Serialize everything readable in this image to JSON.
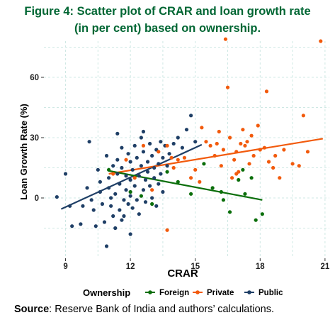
{
  "title": {
    "line1": "Figure 4: Scatter plot of CRAR and loan growth rate",
    "line2": "(in per cent) based on ownership."
  },
  "source": {
    "label": "Source",
    "text": ": Reserve Bank of India and authors’ calculations."
  },
  "chart_data": {
    "type": "scatter",
    "xlabel": "CRAR",
    "ylabel": "Loan Growth Rate (%)",
    "xlim": [
      8,
      21.2
    ],
    "ylim": [
      -30,
      78
    ],
    "xticks": [
      9,
      12,
      15,
      18,
      21
    ],
    "yticks": [
      0,
      30,
      60
    ],
    "grid": true,
    "legend": {
      "title": "Ownership",
      "position": "bottom",
      "entries": [
        "Foreign",
        "Private",
        "Public"
      ]
    },
    "colors": {
      "Foreign": "#0a6e0a",
      "Private": "#f25a0c",
      "Public": "#1f3f66"
    },
    "series": [
      {
        "name": "Public",
        "points": [
          [
            8.6,
            0.5
          ],
          [
            9.0,
            12
          ],
          [
            9.2,
            -4
          ],
          [
            9.3,
            -14
          ],
          [
            9.7,
            -13
          ],
          [
            9.8,
            -4
          ],
          [
            10.0,
            5
          ],
          [
            10.1,
            28
          ],
          [
            10.2,
            -1
          ],
          [
            10.3,
            -6
          ],
          [
            10.4,
            -14
          ],
          [
            10.5,
            14
          ],
          [
            10.6,
            8
          ],
          [
            10.6,
            3
          ],
          [
            10.7,
            -3
          ],
          [
            10.8,
            -12
          ],
          [
            10.9,
            21
          ],
          [
            11.0,
            10
          ],
          [
            11.0,
            5
          ],
          [
            11.1,
            0
          ],
          [
            11.1,
            -4
          ],
          [
            11.2,
            -9
          ],
          [
            11.2,
            16
          ],
          [
            11.3,
            -15
          ],
          [
            11.3,
            2
          ],
          [
            11.4,
            12
          ],
          [
            11.4,
            19
          ],
          [
            11.5,
            7
          ],
          [
            11.5,
            -6
          ],
          [
            11.6,
            25
          ],
          [
            11.6,
            15
          ],
          [
            11.7,
            -1
          ],
          [
            11.7,
            -9
          ],
          [
            11.8,
            11
          ],
          [
            11.8,
            4
          ],
          [
            11.9,
            22
          ],
          [
            11.9,
            -3
          ],
          [
            12.0,
            18
          ],
          [
            12.0,
            9
          ],
          [
            12.0,
            1
          ],
          [
            12.1,
            -5
          ],
          [
            12.1,
            14
          ],
          [
            12.2,
            26
          ],
          [
            12.2,
            6
          ],
          [
            12.3,
            -1
          ],
          [
            12.3,
            20
          ],
          [
            12.4,
            11
          ],
          [
            12.4,
            -8
          ],
          [
            12.5,
            30
          ],
          [
            12.5,
            16
          ],
          [
            12.6,
            4
          ],
          [
            12.6,
            23
          ],
          [
            12.7,
            9
          ],
          [
            12.7,
            -2
          ],
          [
            12.8,
            18
          ],
          [
            12.8,
            13
          ],
          [
            12.9,
            27
          ],
          [
            12.9,
            6
          ],
          [
            13.0,
            21
          ],
          [
            13.0,
            0
          ],
          [
            13.1,
            15
          ],
          [
            13.1,
            10
          ],
          [
            13.2,
            24
          ],
          [
            13.2,
            -4
          ],
          [
            13.3,
            17
          ],
          [
            13.3,
            7
          ],
          [
            13.4,
            28
          ],
          [
            13.4,
            12
          ],
          [
            13.5,
            20
          ],
          [
            13.5,
            3
          ],
          [
            13.6,
            26
          ],
          [
            13.7,
            16
          ],
          [
            13.8,
            22
          ],
          [
            14.0,
            27
          ],
          [
            14.2,
            30
          ],
          [
            14.4,
            25
          ],
          [
            14.6,
            34
          ],
          [
            14.8,
            41
          ],
          [
            15.0,
            28
          ],
          [
            10.9,
            -24
          ],
          [
            11.6,
            -11
          ],
          [
            12.0,
            -18
          ],
          [
            11.4,
            32
          ],
          [
            12.6,
            33
          ]
        ]
      },
      {
        "name": "Private",
        "points": [
          [
            11.2,
            12
          ],
          [
            11.8,
            19
          ],
          [
            12.2,
            10
          ],
          [
            12.6,
            26
          ],
          [
            13.0,
            4
          ],
          [
            13.3,
            23
          ],
          [
            13.7,
            -16
          ],
          [
            13.7,
            26
          ],
          [
            13.9,
            20
          ],
          [
            14.0,
            15
          ],
          [
            14.2,
            19
          ],
          [
            14.5,
            20
          ],
          [
            14.8,
            10
          ],
          [
            15.0,
            14
          ],
          [
            15.2,
            8
          ],
          [
            15.3,
            35
          ],
          [
            15.5,
            28
          ],
          [
            15.7,
            26
          ],
          [
            15.9,
            21
          ],
          [
            16.0,
            27
          ],
          [
            16.1,
            33
          ],
          [
            16.2,
            16
          ],
          [
            16.3,
            24
          ],
          [
            16.4,
            79
          ],
          [
            16.5,
            55
          ],
          [
            16.6,
            30
          ],
          [
            16.7,
            10
          ],
          [
            16.8,
            19
          ],
          [
            16.9,
            23
          ],
          [
            17.0,
            13
          ],
          [
            17.2,
            34
          ],
          [
            17.3,
            26
          ],
          [
            17.4,
            28
          ],
          [
            17.5,
            17
          ],
          [
            17.6,
            31
          ],
          [
            17.7,
            21
          ],
          [
            17.9,
            36
          ],
          [
            18.0,
            24
          ],
          [
            18.2,
            25
          ],
          [
            18.3,
            53
          ],
          [
            18.4,
            18
          ],
          [
            18.6,
            15
          ],
          [
            18.7,
            21
          ],
          [
            18.9,
            10
          ],
          [
            19.1,
            24
          ],
          [
            19.5,
            17
          ],
          [
            19.8,
            16
          ],
          [
            20.0,
            41
          ],
          [
            20.2,
            23
          ],
          [
            20.8,
            78
          ],
          [
            17.1,
            27
          ],
          [
            16.9,
            12
          ]
        ]
      },
      {
        "name": "Foreign",
        "points": [
          [
            11.0,
            14
          ],
          [
            12.0,
            3
          ],
          [
            12.5,
            1
          ],
          [
            13.0,
            -3
          ],
          [
            13.7,
            13
          ],
          [
            14.2,
            8
          ],
          [
            14.8,
            2
          ],
          [
            15.4,
            17
          ],
          [
            15.8,
            5
          ],
          [
            16.2,
            3
          ],
          [
            16.6,
            -7
          ],
          [
            17.0,
            9
          ],
          [
            17.2,
            14
          ],
          [
            17.3,
            2
          ],
          [
            17.6,
            10
          ],
          [
            17.8,
            -11
          ],
          [
            18.1,
            -8
          ],
          [
            16.3,
            -1
          ]
        ]
      }
    ],
    "trendlines": [
      {
        "series": "Public",
        "x": [
          8.8,
          15.3
        ],
        "y": [
          -5.5,
          26.5
        ]
      },
      {
        "series": "Private",
        "x": [
          11.0,
          20.9
        ],
        "y": [
          12,
          29.5
        ]
      },
      {
        "series": "Foreign",
        "x": [
          11.0,
          18.1
        ],
        "y": [
          13.5,
          -1
        ]
      }
    ]
  }
}
